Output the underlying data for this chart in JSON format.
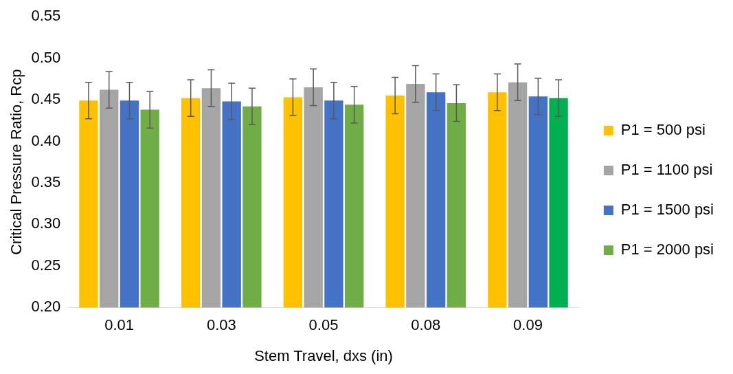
{
  "chart_data": {
    "type": "bar",
    "xlabel": "Stem Travel, dxs (in)",
    "ylabel": "Critical Pressure Ratio, Rcp",
    "categories": [
      "0.01",
      "0.03",
      "0.05",
      "0.08",
      "0.09"
    ],
    "series": [
      {
        "name": "P1 = 500 psi",
        "color": "#ffc000",
        "values": [
          0.449,
          0.452,
          0.453,
          0.455,
          0.459
        ],
        "errors": [
          0.022,
          0.022,
          0.022,
          0.022,
          0.022
        ]
      },
      {
        "name": "P1 = 1100 psi",
        "color": "#a5a5a5",
        "values": [
          0.462,
          0.464,
          0.465,
          0.469,
          0.471
        ],
        "errors": [
          0.022,
          0.022,
          0.022,
          0.022,
          0.022
        ]
      },
      {
        "name": "P1 = 1500 psi",
        "color": "#4472c4",
        "values": [
          0.449,
          0.448,
          0.449,
          0.459,
          0.454
        ],
        "errors": [
          0.022,
          0.022,
          0.022,
          0.022,
          0.022
        ]
      },
      {
        "name": "P1 = 2000 psi",
        "color": "#70ad47",
        "colors": [
          "#70ad47",
          "#70ad47",
          "#70ad47",
          "#70ad47",
          "#00b050"
        ],
        "values": [
          0.438,
          0.442,
          0.444,
          0.446,
          0.452
        ],
        "errors": [
          0.022,
          0.022,
          0.022,
          0.022,
          0.022
        ]
      }
    ],
    "ylim": [
      0.2,
      0.55
    ],
    "yticks": [
      {
        "value": 0.2,
        "label": "0.20"
      },
      0.25,
      {
        "value": 0.3,
        "label": "0.30"
      },
      0.35,
      {
        "value": 0.4,
        "label": "0.40"
      },
      0.45,
      {
        "value": 0.5,
        "label": "0.50"
      },
      0.55
    ],
    "grid": false,
    "legend": "right"
  }
}
